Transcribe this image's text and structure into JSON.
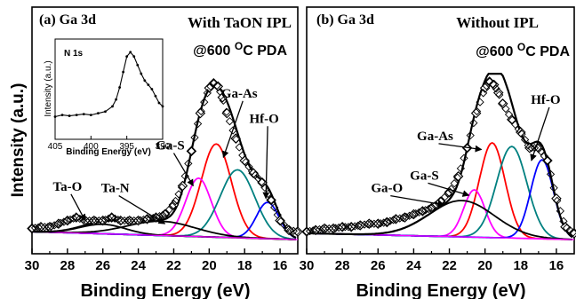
{
  "figure": {
    "ylabel": "Intensity (a.u.)",
    "colors": {
      "background": "#000000",
      "ga_as": "#ff0000",
      "ga_s": "#ff00ff",
      "hf_o": "#0000ff",
      "teal": "#008080",
      "envelope": "#000000",
      "ta_n": "#000000",
      "ga_o": "#000000"
    }
  },
  "chart_data": [
    {
      "type": "line",
      "panel": "a",
      "title_left": "(a) Ga 3d",
      "title_right": "With TaON IPL",
      "subtitle_prefix": "@600 ",
      "subtitle_sup": "O",
      "subtitle_suffix": "C PDA",
      "xlabel": "Binding Energy (eV)",
      "xlim": [
        30,
        15
      ],
      "xticks": [
        "30",
        "28",
        "26",
        "24",
        "22",
        "20",
        "18",
        "16"
      ],
      "xtick_values": [
        30,
        28,
        26,
        24,
        22,
        20,
        18,
        16
      ],
      "ylim": [
        0,
        1.1
      ],
      "background_line": {
        "x": [
          30,
          15
        ],
        "y": [
          0.05,
          0.0
        ]
      },
      "peaks": [
        {
          "label": "Ga-As",
          "color_key": "ga_as",
          "center": 19.6,
          "height": 0.59,
          "fwhm": 2.0,
          "label_pos": {
            "x": 18.3,
            "y": 0.9
          },
          "arrow_to": {
            "x": 19.2,
            "y": 0.52
          }
        },
        {
          "label": "Ga-S",
          "color_key": "ga_s",
          "center": 20.6,
          "height": 0.37,
          "fwhm": 1.7,
          "label_pos": {
            "x": 22.2,
            "y": 0.57
          },
          "arrow_to": {
            "x": 20.9,
            "y": 0.34
          }
        },
        {
          "label": "",
          "color_key": "teal",
          "center": 18.4,
          "height": 0.43,
          "fwhm": 2.3,
          "label_pos": null,
          "arrow_to": null
        },
        {
          "label": "Hf-O",
          "color_key": "hf_o",
          "center": 16.7,
          "height": 0.23,
          "fwhm": 1.5,
          "label_pos": {
            "x": 16.9,
            "y": 0.74
          },
          "arrow_to": {
            "x": 16.8,
            "y": 0.26
          }
        },
        {
          "label": "Ta-N",
          "color_key": "ta_n",
          "center": 22.7,
          "height": 0.09,
          "fwhm": 4.5,
          "label_pos": {
            "x": 25.3,
            "y": 0.3
          },
          "arrow_to": {
            "x": 22.5,
            "y": 0.1
          }
        },
        {
          "label": "Ta-O",
          "color_key": "ta_n",
          "center": 26.0,
          "height": 0.06,
          "fwhm": 3.0,
          "label_pos": {
            "x": 28.0,
            "y": 0.31
          },
          "arrow_to": {
            "x": 27.0,
            "y": 0.12
          }
        }
      ],
      "data": {
        "x": [
          30,
          29.5,
          29,
          28.5,
          28,
          27.5,
          27,
          26.5,
          26,
          25.5,
          25,
          24.5,
          24,
          23.5,
          23,
          22.5,
          22,
          21.5,
          21,
          20.5,
          20,
          19.75,
          19.5,
          19.25,
          19,
          18.5,
          18,
          17.5,
          17,
          16.5,
          16,
          15.5,
          15
        ],
        "y": [
          0.07,
          0.08,
          0.08,
          0.1,
          0.12,
          0.14,
          0.12,
          0.12,
          0.12,
          0.14,
          0.12,
          0.12,
          0.12,
          0.13,
          0.14,
          0.16,
          0.22,
          0.34,
          0.56,
          0.8,
          0.96,
          0.99,
          0.97,
          0.9,
          0.8,
          0.64,
          0.5,
          0.42,
          0.36,
          0.25,
          0.12,
          0.06,
          0.05
        ]
      },
      "inset": {
        "label": "N 1s",
        "xlabel": "Binding Energy (eV)",
        "ylabel": "Intensity (a.u.)",
        "xticks": [
          "405",
          "400",
          "395",
          "390"
        ],
        "xtick_values": [
          405,
          400,
          395,
          390
        ],
        "xlim": [
          405,
          390
        ],
        "ylim": [
          0,
          1
        ],
        "x": [
          405,
          404,
          403,
          402,
          401,
          400,
          399,
          398,
          397,
          396.5,
          396,
          395.5,
          395,
          394.5,
          394,
          393.5,
          393,
          392.5,
          392,
          391.5,
          391,
          390.5,
          390
        ],
        "y": [
          0.18,
          0.2,
          0.19,
          0.2,
          0.21,
          0.2,
          0.22,
          0.24,
          0.3,
          0.38,
          0.52,
          0.7,
          0.88,
          0.93,
          0.88,
          0.78,
          0.68,
          0.6,
          0.55,
          0.5,
          0.42,
          0.34,
          0.3
        ]
      }
    },
    {
      "type": "line",
      "panel": "b",
      "title_left": "(b) Ga 3d",
      "title_right": "Without IPL",
      "subtitle_prefix": "@600 ",
      "subtitle_sup": "O",
      "subtitle_suffix": "C PDA",
      "xlabel": "Binding Energy (eV)",
      "xlim": [
        30,
        15
      ],
      "xticks": [
        "30",
        "28",
        "26",
        "24",
        "22",
        "20",
        "18",
        "16"
      ],
      "xtick_values": [
        30,
        28,
        26,
        24,
        22,
        20,
        18,
        16
      ],
      "ylim": [
        0,
        1.1
      ],
      "background_line": {
        "x": [
          30,
          15
        ],
        "y": [
          0.04,
          0.0
        ]
      },
      "peaks": [
        {
          "label": "Ga-As",
          "color_key": "ga_as",
          "center": 19.6,
          "height": 0.6,
          "fwhm": 1.7,
          "label_pos": {
            "x": 22.8,
            "y": 0.63
          },
          "arrow_to": {
            "x": 20.2,
            "y": 0.57
          }
        },
        {
          "label": "Ga-S",
          "color_key": "ga_s",
          "center": 20.6,
          "height": 0.3,
          "fwhm": 1.4,
          "label_pos": {
            "x": 23.4,
            "y": 0.38
          },
          "arrow_to": {
            "x": 20.9,
            "y": 0.28
          }
        },
        {
          "label": "",
          "color_key": "teal",
          "center": 18.5,
          "height": 0.58,
          "fwhm": 2.0,
          "label_pos": null,
          "arrow_to": null
        },
        {
          "label": "Hf-O",
          "color_key": "hf_o",
          "center": 16.8,
          "height": 0.5,
          "fwhm": 1.5,
          "label_pos": {
            "x": 16.6,
            "y": 0.86
          },
          "arrow_to": {
            "x": 17.4,
            "y": 0.5
          }
        },
        {
          "label": "Ga-O",
          "color_key": "ga_o",
          "center": 21.3,
          "height": 0.23,
          "fwhm": 4.3,
          "label_pos": {
            "x": 25.5,
            "y": 0.3
          },
          "arrow_to": {
            "x": 22.3,
            "y": 0.22
          }
        }
      ],
      "data": {
        "x": [
          30,
          29.5,
          29,
          28.5,
          28,
          27.5,
          27,
          26.5,
          26,
          25.5,
          25,
          24.5,
          24,
          23.5,
          23,
          22.5,
          22,
          21.5,
          21,
          20.5,
          20,
          19.75,
          19.5,
          19.25,
          19,
          18.5,
          18,
          17.5,
          17,
          16.5,
          16,
          15.5,
          15
        ],
        "y": [
          0.05,
          0.06,
          0.07,
          0.07,
          0.08,
          0.08,
          0.09,
          0.1,
          0.1,
          0.11,
          0.13,
          0.14,
          0.16,
          0.18,
          0.2,
          0.24,
          0.3,
          0.4,
          0.58,
          0.8,
          0.96,
          1.0,
          0.98,
          0.93,
          0.86,
          0.76,
          0.68,
          0.58,
          0.58,
          0.5,
          0.26,
          0.08,
          0.04
        ]
      }
    }
  ]
}
